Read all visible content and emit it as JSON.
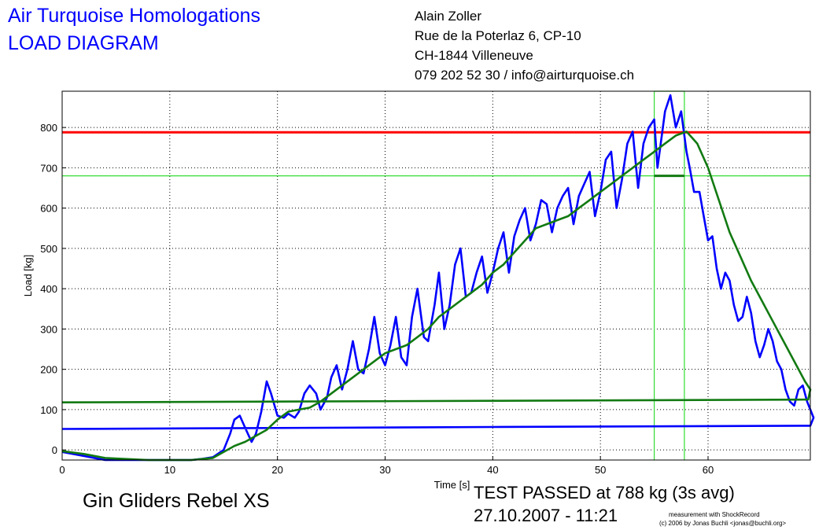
{
  "header": {
    "title_line1": "Air Turquoise Homologations",
    "title_line2": "LOAD DIAGRAM",
    "address": [
      "Alain Zoller",
      "Rue de la Poterlaz 6, CP-10",
      "CH-1844 Villeneuve",
      "079 202 52 30 / info@airturquoise.ch"
    ]
  },
  "footer": {
    "glider": "Gin Gliders Rebel XS",
    "result": "TEST PASSED at 788 kg (3s avg)",
    "timestamp": "27.10.2007 - 11:21",
    "credit_line1": "measurement with ShockRecord",
    "credit_line2": "(c) 2006 by Jonas Buchli <jonas@buchli.org>"
  },
  "colors": {
    "raw": "#0000ff",
    "avg": "#127a12",
    "limit": "#ff0000",
    "marker": "#33dd33"
  },
  "chart_data": {
    "type": "line",
    "title": "",
    "xlabel": "Time [s]",
    "ylabel": "Load [kg]",
    "xlim": [
      0,
      69.5
    ],
    "ylim": [
      -25,
      890
    ],
    "xticks": [
      0,
      10,
      20,
      30,
      40,
      50,
      60
    ],
    "yticks": [
      0,
      100,
      200,
      300,
      400,
      500,
      600,
      700,
      800
    ],
    "grid": true,
    "legend": "none",
    "series": [
      {
        "key": "raw",
        "points": [
          [
            0,
            -5
          ],
          [
            2,
            -15
          ],
          [
            4,
            -25
          ],
          [
            8,
            -25
          ],
          [
            12,
            -25
          ],
          [
            13,
            -22
          ],
          [
            14,
            -18
          ],
          [
            15,
            0
          ],
          [
            15.6,
            40
          ],
          [
            16,
            75
          ],
          [
            16.5,
            85
          ],
          [
            17,
            55
          ],
          [
            17.6,
            20
          ],
          [
            18,
            40
          ],
          [
            18.5,
            95
          ],
          [
            19,
            170
          ],
          [
            19.4,
            140
          ],
          [
            20,
            85
          ],
          [
            20.6,
            80
          ],
          [
            21,
            90
          ],
          [
            21.6,
            80
          ],
          [
            22,
            95
          ],
          [
            22.5,
            140
          ],
          [
            23,
            160
          ],
          [
            23.6,
            140
          ],
          [
            24,
            100
          ],
          [
            24.6,
            130
          ],
          [
            25,
            180
          ],
          [
            25.5,
            210
          ],
          [
            26,
            150
          ],
          [
            26.5,
            200
          ],
          [
            27,
            270
          ],
          [
            27.5,
            200
          ],
          [
            28,
            190
          ],
          [
            28.5,
            250
          ],
          [
            29,
            330
          ],
          [
            29.5,
            240
          ],
          [
            30,
            210
          ],
          [
            30.5,
            260
          ],
          [
            31,
            330
          ],
          [
            31.5,
            230
          ],
          [
            32,
            210
          ],
          [
            32.5,
            330
          ],
          [
            33,
            400
          ],
          [
            33.6,
            280
          ],
          [
            34,
            270
          ],
          [
            34.6,
            360
          ],
          [
            35,
            440
          ],
          [
            35.5,
            300
          ],
          [
            36,
            360
          ],
          [
            36.5,
            460
          ],
          [
            37,
            500
          ],
          [
            37.5,
            380
          ],
          [
            38,
            390
          ],
          [
            38.5,
            440
          ],
          [
            39,
            480
          ],
          [
            39.5,
            390
          ],
          [
            40,
            440
          ],
          [
            40.5,
            500
          ],
          [
            41,
            540
          ],
          [
            41.5,
            440
          ],
          [
            42,
            530
          ],
          [
            42.5,
            570
          ],
          [
            43,
            600
          ],
          [
            43.5,
            520
          ],
          [
            44,
            560
          ],
          [
            44.5,
            620
          ],
          [
            45,
            610
          ],
          [
            45.5,
            540
          ],
          [
            46,
            600
          ],
          [
            46.5,
            630
          ],
          [
            47,
            650
          ],
          [
            47.5,
            560
          ],
          [
            48,
            630
          ],
          [
            48.5,
            660
          ],
          [
            49,
            690
          ],
          [
            49.5,
            580
          ],
          [
            50,
            640
          ],
          [
            50.5,
            720
          ],
          [
            51,
            740
          ],
          [
            51.5,
            600
          ],
          [
            52,
            670
          ],
          [
            52.5,
            760
          ],
          [
            53,
            790
          ],
          [
            53.5,
            650
          ],
          [
            54,
            760
          ],
          [
            54.5,
            800
          ],
          [
            55,
            820
          ],
          [
            55.3,
            700
          ],
          [
            55.7,
            780
          ],
          [
            56,
            840
          ],
          [
            56.5,
            880
          ],
          [
            57,
            800
          ],
          [
            57.5,
            840
          ],
          [
            58,
            740
          ],
          [
            58.3,
            700
          ],
          [
            58.7,
            640
          ],
          [
            59.2,
            640
          ],
          [
            59.6,
            580
          ],
          [
            60,
            520
          ],
          [
            60.4,
            530
          ],
          [
            60.8,
            450
          ],
          [
            61.2,
            400
          ],
          [
            61.6,
            440
          ],
          [
            62,
            420
          ],
          [
            62.4,
            360
          ],
          [
            62.8,
            320
          ],
          [
            63.2,
            330
          ],
          [
            63.6,
            380
          ],
          [
            64,
            340
          ],
          [
            64.4,
            270
          ],
          [
            64.8,
            230
          ],
          [
            65.2,
            260
          ],
          [
            65.6,
            300
          ],
          [
            66,
            270
          ],
          [
            66.4,
            220
          ],
          [
            66.8,
            200
          ],
          [
            67.2,
            150
          ],
          [
            67.6,
            120
          ],
          [
            68,
            110
          ],
          [
            68.4,
            150
          ],
          [
            68.8,
            160
          ],
          [
            69.2,
            120
          ],
          [
            69.5,
            100
          ],
          [
            69.8,
            80
          ],
          [
            69.5,
            60
          ],
          [
            40,
            57
          ],
          [
            0,
            52
          ]
        ]
      },
      {
        "key": "avg",
        "points": [
          [
            0,
            -3
          ],
          [
            2,
            -10
          ],
          [
            4,
            -20
          ],
          [
            8,
            -25
          ],
          [
            12,
            -25
          ],
          [
            14,
            -20
          ],
          [
            15,
            -5
          ],
          [
            16,
            10
          ],
          [
            17,
            20
          ],
          [
            18,
            35
          ],
          [
            19,
            50
          ],
          [
            20,
            75
          ],
          [
            21,
            95
          ],
          [
            22,
            100
          ],
          [
            23,
            105
          ],
          [
            24,
            120
          ],
          [
            25,
            140
          ],
          [
            26,
            160
          ],
          [
            27,
            180
          ],
          [
            28,
            200
          ],
          [
            29,
            220
          ],
          [
            30,
            240
          ],
          [
            31,
            250
          ],
          [
            32,
            260
          ],
          [
            33,
            280
          ],
          [
            34,
            300
          ],
          [
            35,
            330
          ],
          [
            36,
            350
          ],
          [
            37,
            370
          ],
          [
            38,
            390
          ],
          [
            39,
            410
          ],
          [
            40,
            440
          ],
          [
            41,
            460
          ],
          [
            42,
            490
          ],
          [
            43,
            520
          ],
          [
            44,
            550
          ],
          [
            45,
            560
          ],
          [
            46,
            570
          ],
          [
            47,
            580
          ],
          [
            48,
            600
          ],
          [
            49,
            620
          ],
          [
            50,
            640
          ],
          [
            51,
            660
          ],
          [
            52,
            680
          ],
          [
            53,
            700
          ],
          [
            54,
            720
          ],
          [
            55,
            740
          ],
          [
            56,
            760
          ],
          [
            57,
            780
          ],
          [
            58,
            790
          ],
          [
            59,
            760
          ],
          [
            60,
            700
          ],
          [
            61,
            620
          ],
          [
            62,
            540
          ],
          [
            63,
            480
          ],
          [
            64,
            420
          ],
          [
            65,
            370
          ],
          [
            66,
            320
          ],
          [
            67,
            270
          ],
          [
            68,
            220
          ],
          [
            69,
            170
          ],
          [
            69.5,
            150
          ],
          [
            69.3,
            125
          ],
          [
            40,
            122
          ],
          [
            0,
            118
          ]
        ]
      }
    ],
    "reference_lines": {
      "limit_kg": 788,
      "avg_threshold_kg": 680,
      "window_start_s": 55,
      "window_end_s": 57.8
    }
  }
}
